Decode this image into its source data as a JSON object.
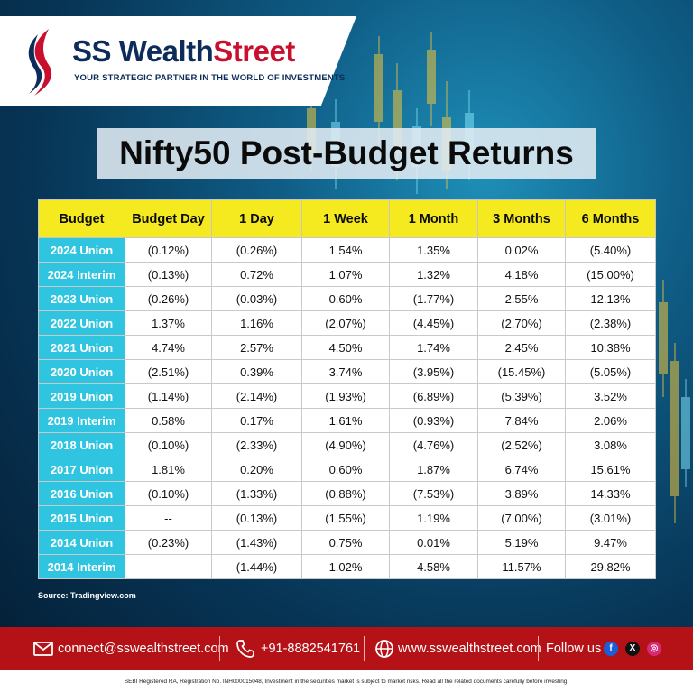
{
  "brand": {
    "name_part1": "SS Wealth",
    "name_part2": "Street",
    "tagline": "YOUR STRATEGIC PARTNER IN THE WORLD OF INVESTMENTS"
  },
  "title": "Nifty50 Post-Budget Returns",
  "table": {
    "headers": [
      "Budget",
      "Budget Day",
      "1 Day",
      "1 Week",
      "1 Month",
      "3 Months",
      "6 Months"
    ],
    "rows": [
      [
        "2024 Union",
        "(0.12%)",
        "(0.26%)",
        "1.54%",
        "1.35%",
        "0.02%",
        "(5.40%)"
      ],
      [
        "2024 Interim",
        "(0.13%)",
        "0.72%",
        "1.07%",
        "1.32%",
        "4.18%",
        "(15.00%)"
      ],
      [
        "2023 Union",
        "(0.26%)",
        "(0.03%)",
        "0.60%",
        "(1.77%)",
        "2.55%",
        "12.13%"
      ],
      [
        "2022 Union",
        "1.37%",
        "1.16%",
        "(2.07%)",
        "(4.45%)",
        "(2.70%)",
        "(2.38%)"
      ],
      [
        "2021 Union",
        "4.74%",
        "2.57%",
        "4.50%",
        "1.74%",
        "2.45%",
        "10.38%"
      ],
      [
        "2020 Union",
        "(2.51%)",
        "0.39%",
        "3.74%",
        "(3.95%)",
        "(15.45%)",
        "(5.05%)"
      ],
      [
        "2019 Union",
        "(1.14%)",
        "(2.14%)",
        "(1.93%)",
        "(6.89%)",
        "(5.39%)",
        "3.52%"
      ],
      [
        "2019 Interim",
        "0.58%",
        "0.17%",
        "1.61%",
        "(0.93%)",
        "7.84%",
        "2.06%"
      ],
      [
        "2018 Union",
        "(0.10%)",
        "(2.33%)",
        "(4.90%)",
        "(4.76%)",
        "(2.52%)",
        "3.08%"
      ],
      [
        "2017 Union",
        "1.81%",
        "0.20%",
        "0.60%",
        "1.87%",
        "6.74%",
        "15.61%"
      ],
      [
        "2016 Union",
        "(0.10%)",
        "(1.33%)",
        "(0.88%)",
        "(7.53%)",
        "3.89%",
        "14.33%"
      ],
      [
        "2015 Union",
        "--",
        "(0.13%)",
        "(1.55%)",
        "1.19%",
        "(7.00%)",
        "(3.01%)"
      ],
      [
        "2014 Union",
        "(0.23%)",
        "(1.43%)",
        "0.75%",
        "0.01%",
        "5.19%",
        "9.47%"
      ],
      [
        "2014 Interim",
        "--",
        "(1.44%)",
        "1.02%",
        "4.58%",
        "11.57%",
        "29.82%"
      ]
    ]
  },
  "source": "Source: Tradingview.com",
  "footer": {
    "email": "connect@sswealthstreet.com",
    "phone": "+91-8882541761",
    "website": "www.sswealthstreet.com",
    "follow": "Follow us",
    "social_icons": [
      "facebook-icon",
      "x-icon",
      "instagram-icon"
    ]
  },
  "disclaimer": "SEBI Registered RA, Registration No. INH000015048, Investment in the securities market is subject to market risks. Read all the related documents carefully before investing.",
  "colors": {
    "header_yellow": "#f5ea1f",
    "label_cyan": "#2fc4df",
    "footer_red": "#b51218",
    "brand_navy": "#0d2c5a",
    "brand_red": "#c8102e"
  }
}
